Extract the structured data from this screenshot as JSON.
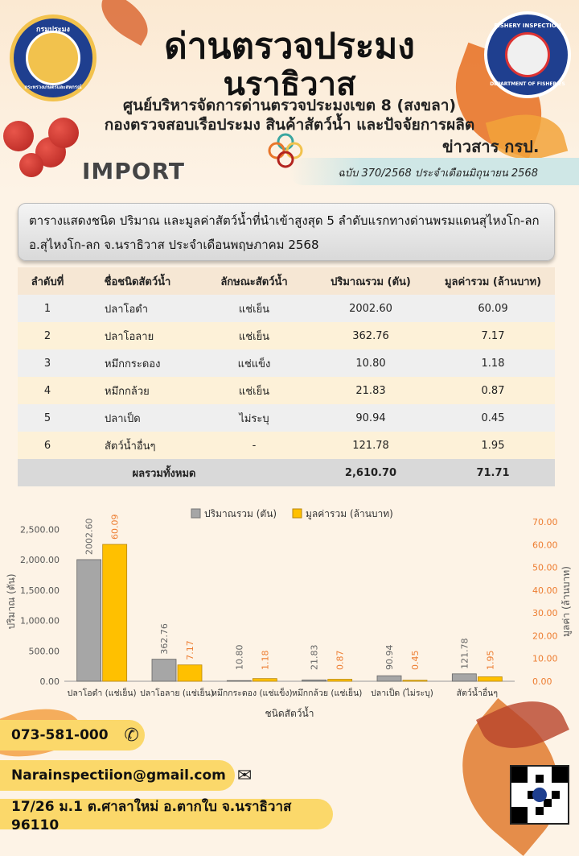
{
  "header": {
    "title_line1": "ด่านตรวจประมง",
    "title_line2": "นราธิวาส",
    "subtitle_line1": "ศูนย์บริหารจัดการด่านตรวจประมงเขต 8 (สงขลา)",
    "subtitle_line2": "กองตรวจสอบเรือประมง สินค้าสัตว์น้ำ และปัจจัยการผลิต",
    "section_label": "IMPORT",
    "bulletin_label": "ข่าวสาร กรป.",
    "issue": "ฉบับ 370/2568 ประจำเดือนมิถุนายน  2568",
    "left_seal_text": "กรมประมง",
    "left_seal_text_bottom": "กระทรวงเกษตรและสหกรณ์",
    "right_seal_text_top": "FISHERY INSPECTION",
    "right_seal_text_bottom": "DEPARTMENT OF FISHERIES"
  },
  "caption": {
    "line1": "ตารางแสดงชนิด ปริมาณ และมูลค่าสัตว์น้ำที่นำเข้าสูงสุด 5 ลำดับแรกทางด่านพรมแดนสุไหงโก-ลก",
    "line2": "อ.สุไหงโก-ลก จ.นราธิวาส ประจำเดือนพฤษภาคม  2568"
  },
  "table": {
    "headers": [
      "ลำดับที่",
      "ชื่อชนิดสัตว์น้ำ",
      "ลักษณะสัตว์น้ำ",
      "ปริมาณรวม (ตัน)",
      "มูลค่ารวม (ล้านบาท)"
    ],
    "rows": [
      [
        "1",
        "ปลาโอดำ",
        "แช่เย็น",
        "2002.60",
        "60.09"
      ],
      [
        "2",
        "ปลาโอลาย",
        "แช่เย็น",
        "362.76",
        "7.17"
      ],
      [
        "3",
        "หมึกกระดอง",
        "แช่แข็ง",
        "10.80",
        "1.18"
      ],
      [
        "4",
        "หมึกกล้วย",
        "แช่เย็น",
        "21.83",
        "0.87"
      ],
      [
        "5",
        "ปลาเป็ด",
        "ไม่ระบุ",
        "90.94",
        "0.45"
      ],
      [
        "6",
        "สัตว์น้ำอื่นๆ",
        "-",
        "121.78",
        "1.95"
      ]
    ],
    "total_label": "ผลรวมทั้งหมด",
    "total_quantity": "2,610.70",
    "total_value": "71.71"
  },
  "chart_data": {
    "type": "bar",
    "categories": [
      "ปลาโอดำ (แช่เย็น)",
      "ปลาโอลาย (แช่เย็น)",
      "หมึกกระดอง (แช่แข็ง)",
      "หมึกกล้วย (แช่เย็น)",
      "ปลาเป็ด (ไม่ระบุ)",
      "สัตว์น้ำอื่นๆ"
    ],
    "series": [
      {
        "name": "ปริมาณรวม (ตัน)",
        "values": [
          2002.6,
          362.76,
          10.8,
          21.83,
          90.94,
          121.78
        ],
        "labels": [
          "2002.60",
          "362.76",
          "10.80",
          "21.83",
          "90.94",
          "121.78"
        ],
        "axis": "left",
        "color": "#a6a6a6"
      },
      {
        "name": "มูลค่ารวม (ล้านบาท)",
        "values": [
          60.09,
          7.17,
          1.18,
          0.87,
          0.45,
          1.95
        ],
        "labels": [
          "60.09",
          "7.17",
          "1.18",
          "0.87",
          "0.45",
          "1.95"
        ],
        "axis": "right",
        "color": "#ffc000"
      }
    ],
    "xlabel": "ชนิดสัตว์น้ำ",
    "ylabel": "ปริมาณ (ตัน)",
    "y2label": "มูลค่า (ล้านบาท)",
    "ylim": [
      0,
      2625
    ],
    "y2lim": [
      0,
      70
    ],
    "yticks": [
      "0.00",
      "500.00",
      "1,000.00",
      "1,500.00",
      "2,000.00",
      "2,500.00"
    ],
    "ytick_values": [
      0,
      500,
      1000,
      1500,
      2000,
      2500
    ],
    "y2ticks": [
      "0.00",
      "10.00",
      "20.00",
      "30.00",
      "40.00",
      "50.00",
      "60.00",
      "70.00"
    ],
    "y2tick_values": [
      0,
      10,
      20,
      30,
      40,
      50,
      60,
      70
    ],
    "legend": "top",
    "grid": false
  },
  "contact": {
    "phone": "073-581-000",
    "email": "Narainspectiion@gmail.com",
    "address": "17/26 ม.1 ต.ศาลาใหม่ อ.ตากใบ จ.นราธิวาส 96110"
  },
  "colors": {
    "accent_yellow": "#fbd86a",
    "bar_grey": "#a6a6a6",
    "bar_gold": "#ffc000",
    "value_label_orange": "#ed7d31"
  }
}
